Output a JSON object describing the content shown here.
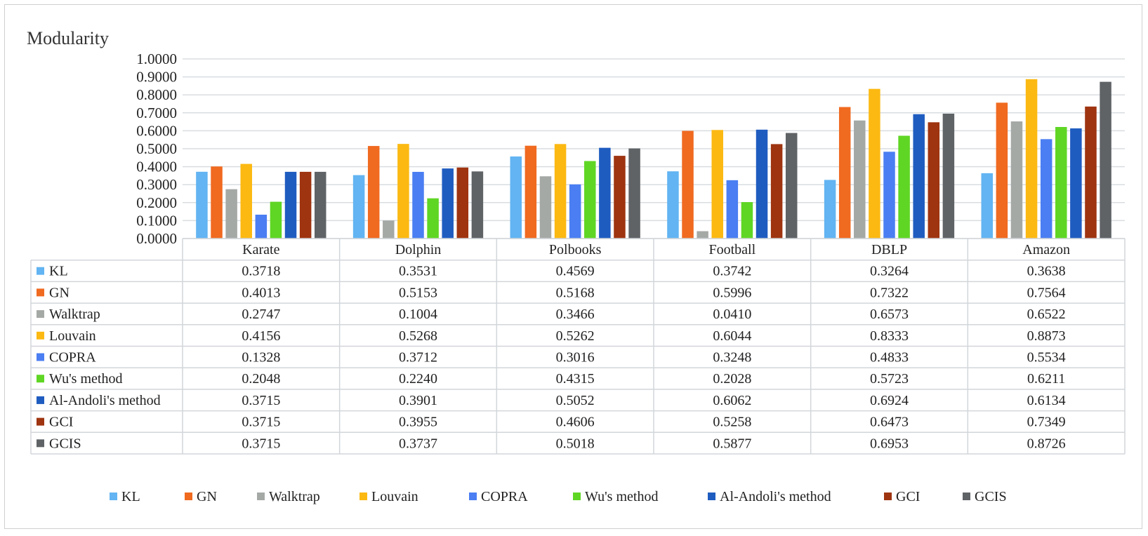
{
  "chart_data": {
    "type": "bar",
    "title": "Modularity",
    "xlabel": "",
    "ylabel": "Modularity",
    "ylim": [
      0,
      1
    ],
    "yticks": [
      "0.0000",
      "0.1000",
      "0.2000",
      "0.3000",
      "0.4000",
      "0.5000",
      "0.6000",
      "0.7000",
      "0.8000",
      "0.9000",
      "1.0000"
    ],
    "grid": true,
    "legend_position": "bottom",
    "categories": [
      "Karate",
      "Dolphin",
      "Polbooks",
      "Football",
      "DBLP",
      "Amazon"
    ],
    "series": [
      {
        "name": "KL",
        "color": "#62b4f2",
        "values": [
          0.3718,
          0.3531,
          0.4569,
          0.3742,
          0.3264,
          0.3638
        ],
        "labels": [
          "0.3718",
          "0.3531",
          "0.4569",
          "0.3742",
          "0.3264",
          "0.3638"
        ]
      },
      {
        "name": "GN",
        "color": "#f06a20",
        "values": [
          0.4013,
          0.5153,
          0.5168,
          0.5996,
          0.7322,
          0.7564
        ],
        "labels": [
          "0.4013",
          "0.5153",
          "0.5168",
          "0.5996",
          "0.7322",
          "0.7564"
        ]
      },
      {
        "name": "Walktrap",
        "color": "#a5a9a6",
        "values": [
          0.2747,
          0.1004,
          0.3466,
          0.041,
          0.6573,
          0.6522
        ],
        "labels": [
          "0.2747",
          "0.1004",
          "0.3466",
          "0.0410",
          "0.6573",
          "0.6522"
        ]
      },
      {
        "name": "Louvain",
        "color": "#fcb912",
        "values": [
          0.4156,
          0.5268,
          0.5262,
          0.6044,
          0.8333,
          0.8873
        ],
        "labels": [
          "0.4156",
          "0.5268",
          "0.5262",
          "0.6044",
          "0.8333",
          "0.8873"
        ]
      },
      {
        "name": "COPRA",
        "color": "#4a7ef2",
        "values": [
          0.1328,
          0.3712,
          0.3016,
          0.3248,
          0.4833,
          0.5534
        ],
        "labels": [
          "0.1328",
          "0.3712",
          "0.3016",
          "0.3248",
          "0.4833",
          "0.5534"
        ]
      },
      {
        "name": "Wu's method",
        "color": "#5fd624",
        "values": [
          0.2048,
          0.224,
          0.4315,
          0.2028,
          0.5723,
          0.6211
        ],
        "labels": [
          "0.2048",
          "0.2240",
          "0.4315",
          "0.2028",
          "0.5723",
          "0.6211"
        ]
      },
      {
        "name": "Al-Andoli's method",
        "color": "#1f5cc0",
        "values": [
          0.3715,
          0.3901,
          0.5052,
          0.6062,
          0.6924,
          0.6134
        ],
        "labels": [
          "0.3715",
          "0.3901",
          "0.5052",
          "0.6062",
          "0.6924",
          "0.6134"
        ]
      },
      {
        "name": "GCI",
        "color": "#9e3410",
        "values": [
          0.3715,
          0.3955,
          0.4606,
          0.5258,
          0.6473,
          0.7349
        ],
        "labels": [
          "0.3715",
          "0.3955",
          "0.4606",
          "0.5258",
          "0.6473",
          "0.7349"
        ]
      },
      {
        "name": "GCIS",
        "color": "#5f6366",
        "values": [
          0.3715,
          0.3737,
          0.5018,
          0.5877,
          0.6953,
          0.8726
        ],
        "labels": [
          "0.3715",
          "0.3737",
          "0.5018",
          "0.5877",
          "0.6953",
          "0.8726"
        ]
      }
    ]
  },
  "colors": {
    "grid": "#d9dde0",
    "table_border": "#d2d6da",
    "axis_text": "#222222"
  }
}
